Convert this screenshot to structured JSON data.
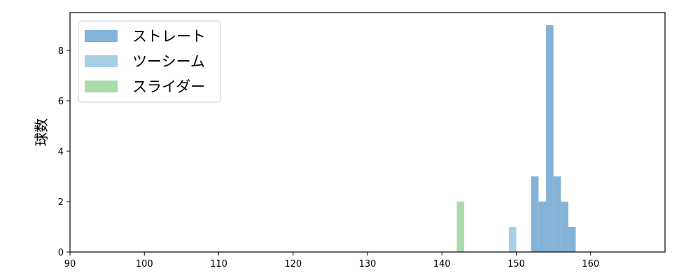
{
  "chart_data": {
    "type": "histogram",
    "title": "",
    "xlabel": "",
    "ylabel": "球数",
    "xlim": [
      90,
      170
    ],
    "ylim": [
      0,
      9.5
    ],
    "xticks": [
      90,
      100,
      110,
      120,
      130,
      140,
      150,
      160
    ],
    "yticks": [
      0,
      2,
      4,
      6,
      8
    ],
    "grid": false,
    "legend_position": "top-left",
    "series": [
      {
        "name": "ストレート",
        "color": "#84b3d7",
        "bins": [
          [
            152,
            153,
            3
          ],
          [
            153,
            154,
            2
          ],
          [
            154,
            155,
            9
          ],
          [
            155,
            156,
            3
          ],
          [
            156,
            157,
            2
          ],
          [
            157,
            158,
            1
          ]
        ]
      },
      {
        "name": "ツーシーム",
        "color": "#a7cfe6",
        "bins": [
          [
            149,
            150,
            1
          ]
        ]
      },
      {
        "name": "スライダー",
        "color": "#acdbab",
        "bins": [
          [
            142,
            143,
            2
          ]
        ]
      }
    ]
  }
}
